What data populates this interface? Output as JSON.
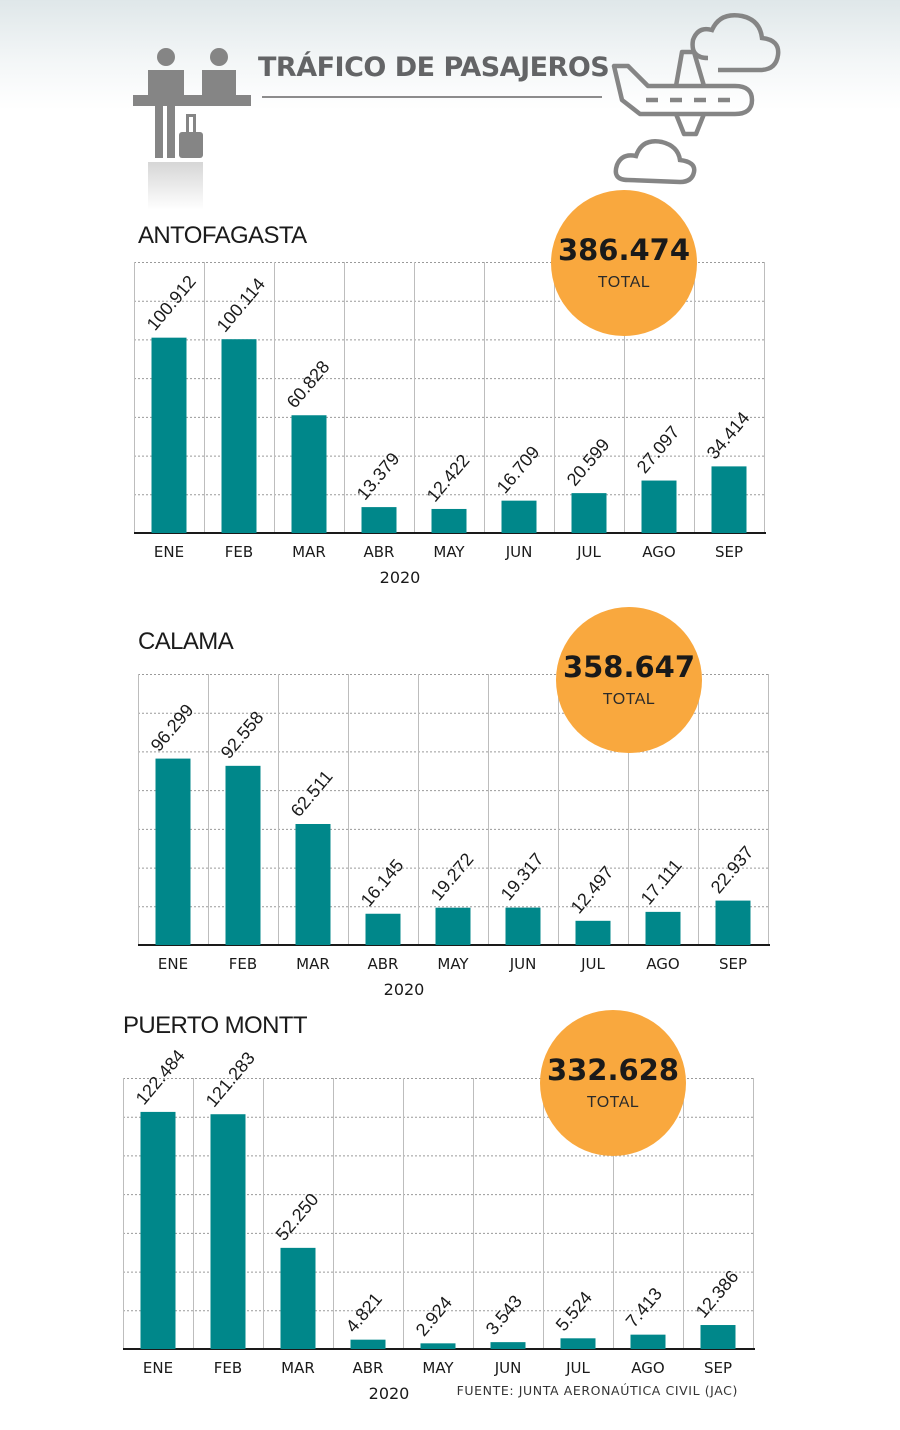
{
  "title": "TRÁFICO DE PASAJEROS",
  "source": "FUENTE: JUNTA AERONAÚTICA CIVIL (JAC)",
  "colors": {
    "bar": "#00878a",
    "badge": "#f9a83e",
    "icon": "#858585",
    "grid": "#9a9a9a"
  },
  "icons": [
    "passengers-icon",
    "airplane-icon",
    "cloud-icon"
  ],
  "chart_data": [
    {
      "type": "bar",
      "title": "ANTOFAGASTA",
      "total_value": "386.474",
      "total_label": "TOTAL",
      "xlabel": "2020",
      "ylabel": "",
      "categories": [
        "ENE",
        "FEB",
        "MAR",
        "ABR",
        "MAY",
        "JUN",
        "JUL",
        "AGO",
        "SEP"
      ],
      "values": [
        100912,
        100114,
        60828,
        13379,
        12422,
        16709,
        20599,
        27097,
        34414
      ],
      "labels": [
        "100.912",
        "100.114",
        "60.828",
        "13.379",
        "12.422",
        "16.709",
        "20.599",
        "27.097",
        "34.414"
      ],
      "ylim": [
        0,
        140000
      ],
      "grid": true
    },
    {
      "type": "bar",
      "title": "CALAMA",
      "total_value": "358.647",
      "total_label": "TOTAL",
      "xlabel": "2020",
      "ylabel": "",
      "categories": [
        "ENE",
        "FEB",
        "MAR",
        "ABR",
        "MAY",
        "JUN",
        "JUL",
        "AGO",
        "SEP"
      ],
      "values": [
        96299,
        92558,
        62511,
        16145,
        19272,
        19317,
        12497,
        17111,
        22937
      ],
      "labels": [
        "96.299",
        "92.558",
        "62.511",
        "16.145",
        "19.272",
        "19.317",
        "12.497",
        "17.111",
        "22.937"
      ],
      "ylim": [
        0,
        140000
      ],
      "grid": true
    },
    {
      "type": "bar",
      "title": "PUERTO MONTT",
      "total_value": "332.628",
      "total_label": "TOTAL",
      "xlabel": "2020",
      "ylabel": "",
      "categories": [
        "ENE",
        "FEB",
        "MAR",
        "ABR",
        "MAY",
        "JUN",
        "JUL",
        "AGO",
        "SEP"
      ],
      "values": [
        122484,
        121283,
        52250,
        4821,
        2924,
        3543,
        5524,
        7413,
        12386
      ],
      "labels": [
        "122.484",
        "121.283",
        "52.250",
        "4.821",
        "2.924",
        "3.543",
        "5.524",
        "7.413",
        "12.386"
      ],
      "ylim": [
        0,
        140000
      ],
      "grid": true
    }
  ]
}
